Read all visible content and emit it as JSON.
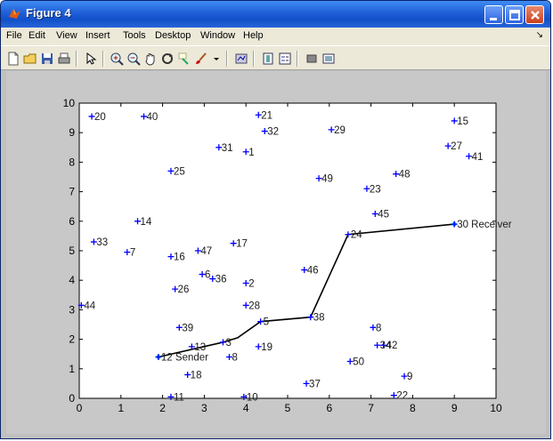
{
  "window": {
    "title": "Figure 4",
    "controls": [
      "minimize",
      "maximize",
      "close"
    ]
  },
  "menu": [
    "File",
    "Edit",
    "View",
    "Insert",
    "Tools",
    "Desktop",
    "Window",
    "Help"
  ],
  "menu_overflow": "↘",
  "toolbar": [
    "new-figure-icon",
    "open-file-icon",
    "save-icon",
    "print-icon",
    "select-arrow-icon",
    "zoom-in-icon",
    "zoom-out-icon",
    "pan-hand-icon",
    "rotate-3d-icon",
    "data-cursor-icon",
    "brush-icon",
    "link-plot-icon",
    "colorbar-icon",
    "legend-icon",
    "hide-plot-tools-icon",
    "show-plot-tools-icon"
  ],
  "chart_data": {
    "type": "scatter",
    "title": "",
    "xlabel": "",
    "ylabel": "",
    "xlim": [
      0,
      10
    ],
    "ylim": [
      0,
      10
    ],
    "xticks": [
      "0",
      "1",
      "2",
      "3",
      "4",
      "5",
      "6",
      "7",
      "8",
      "9",
      "10"
    ],
    "yticks": [
      "0",
      "1",
      "2",
      "3",
      "4",
      "5",
      "6",
      "7",
      "8",
      "9",
      "10"
    ],
    "grid": false,
    "marker_color": "#0000ff",
    "path_color": "#000000",
    "endpoint_color": "#00b8c8",
    "nodes": [
      {
        "label": "20",
        "x": 0.3,
        "y": 9.55
      },
      {
        "label": "40",
        "x": 1.55,
        "y": 9.55
      },
      {
        "label": "21",
        "x": 4.3,
        "y": 9.6
      },
      {
        "label": "15",
        "x": 9.0,
        "y": 9.4
      },
      {
        "label": "32",
        "x": 4.45,
        "y": 9.05
      },
      {
        "label": "29",
        "x": 6.05,
        "y": 9.1
      },
      {
        "label": "31",
        "x": 3.35,
        "y": 8.5
      },
      {
        "label": "1",
        "x": 4.0,
        "y": 8.35
      },
      {
        "label": "27",
        "x": 8.85,
        "y": 8.55
      },
      {
        "label": "41",
        "x": 9.35,
        "y": 8.2
      },
      {
        "label": "25",
        "x": 2.2,
        "y": 7.7
      },
      {
        "label": "49",
        "x": 5.75,
        "y": 7.45
      },
      {
        "label": "48",
        "x": 7.6,
        "y": 7.6
      },
      {
        "label": "23",
        "x": 6.9,
        "y": 7.1
      },
      {
        "label": "45",
        "x": 7.1,
        "y": 6.25
      },
      {
        "label": "14",
        "x": 1.4,
        "y": 6.0
      },
      {
        "label": "30 Receiver",
        "x": 9.0,
        "y": 5.9
      },
      {
        "label": "24",
        "x": 6.45,
        "y": 5.55
      },
      {
        "label": "33",
        "x": 0.35,
        "y": 5.3
      },
      {
        "label": "7",
        "x": 1.15,
        "y": 4.95
      },
      {
        "label": "17",
        "x": 3.7,
        "y": 5.25
      },
      {
        "label": "47",
        "x": 2.85,
        "y": 5.0
      },
      {
        "label": "16",
        "x": 2.2,
        "y": 4.8
      },
      {
        "label": "46",
        "x": 5.4,
        "y": 4.35
      },
      {
        "label": "6",
        "x": 2.95,
        "y": 4.2
      },
      {
        "label": "36",
        "x": 3.2,
        "y": 4.05
      },
      {
        "label": "2",
        "x": 4.0,
        "y": 3.9
      },
      {
        "label": "26",
        "x": 2.3,
        "y": 3.7
      },
      {
        "label": "44",
        "x": 0.05,
        "y": 3.15
      },
      {
        "label": "28",
        "x": 4.0,
        "y": 3.15
      },
      {
        "label": "38",
        "x": 5.55,
        "y": 2.75
      },
      {
        "label": "5",
        "x": 4.35,
        "y": 2.6
      },
      {
        "label": "39",
        "x": 2.4,
        "y": 2.4
      },
      {
        "label": "8",
        "x": 7.05,
        "y": 2.4
      },
      {
        "label": "3",
        "x": 3.45,
        "y": 1.9
      },
      {
        "label": "13",
        "x": 2.7,
        "y": 1.75
      },
      {
        "label": "19",
        "x": 4.3,
        "y": 1.75
      },
      {
        "label": "34",
        "x": 7.15,
        "y": 1.8
      },
      {
        "label": "42",
        "x": 7.3,
        "y": 1.8
      },
      {
        "label": "12 Sender",
        "x": 1.9,
        "y": 1.4
      },
      {
        "label": "8",
        "x": 3.6,
        "y": 1.4
      },
      {
        "label": "50",
        "x": 6.5,
        "y": 1.25
      },
      {
        "label": "18",
        "x": 2.6,
        "y": 0.8
      },
      {
        "label": "9",
        "x": 7.8,
        "y": 0.75
      },
      {
        "label": "37",
        "x": 5.45,
        "y": 0.5
      },
      {
        "label": "11",
        "x": 2.2,
        "y": 0.05
      },
      {
        "label": "10",
        "x": 3.95,
        "y": 0.05
      },
      {
        "label": "22",
        "x": 7.55,
        "y": 0.1
      }
    ],
    "path": [
      {
        "x": 1.9,
        "y": 1.4
      },
      {
        "x": 3.45,
        "y": 1.9
      },
      {
        "x": 3.8,
        "y": 2.05
      },
      {
        "x": 4.35,
        "y": 2.6
      },
      {
        "x": 5.55,
        "y": 2.75
      },
      {
        "x": 6.45,
        "y": 5.55
      },
      {
        "x": 9.0,
        "y": 5.9
      }
    ]
  }
}
